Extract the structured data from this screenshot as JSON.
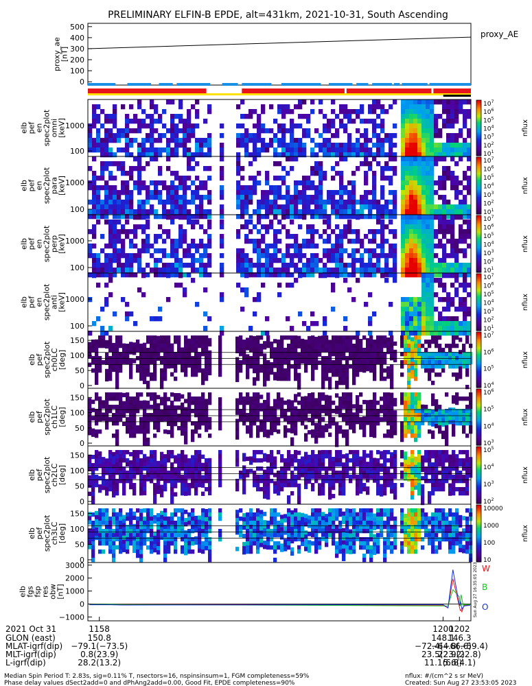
{
  "title": "PRELIMINARY ELFIN-B EPDE, alt=431km, 2021-10-31, South Ascending",
  "colors": {
    "bar_blue": "#1a8fe6",
    "bar_red": "#e8151b",
    "bar_yellow": "#ffe100",
    "bar_black": "#000000",
    "mag_east": "#e8151b",
    "mag_north": "#13c61f",
    "mag_outward": "#1530d8"
  },
  "chart_data": [
    {
      "id": "proxy_ae",
      "type": "line",
      "ylabel_lines": [
        "proxy_ae",
        "[nT]"
      ],
      "legend": "proxy_AE",
      "yticks": [
        0,
        100,
        200,
        300,
        400,
        500
      ],
      "ylim": [
        -30,
        530
      ],
      "xlim_min": [
        1156.6,
        1203.4
      ],
      "series": [
        {
          "name": "proxy_AE",
          "x_min": [
            1156.6,
            1203.4
          ],
          "values": [
            300,
            405
          ]
        }
      ]
    },
    {
      "id": "status_bars",
      "type": "bar",
      "rows": [
        {
          "color": "bar_blue",
          "segments": [
            [
              1156.6,
              1157.3
            ],
            [
              1157.6,
              1158.2
            ],
            [
              1158.4,
              1158.75
            ],
            [
              1158.85,
              1159.7
            ],
            [
              1160.0,
              1160.4
            ],
            [
              1160.5,
              1161.25
            ],
            [
              1161.5,
              1162.5
            ],
            [
              1162.7,
              1163.3
            ],
            [
              1163.4,
              1163.7
            ],
            [
              1163.8,
              1164.3
            ],
            [
              1164.35,
              1164.5
            ],
            [
              1164.55,
              1165.2
            ],
            [
              1165.25,
              1166.3
            ]
          ]
        },
        {
          "color": "bar_red",
          "segments": [
            [
              1156.6,
              1159.6
            ],
            [
              1160.5,
              1163.1
            ],
            [
              1163.15,
              1165.3
            ],
            [
              1165.35,
              1166.3
            ]
          ]
        },
        {
          "color": "bar_yellow",
          "segments": [
            [
              1156.6,
              1166.3
            ]
          ]
        },
        {
          "color": "bar_black",
          "segments": [
            [
              1165.6,
              1166.3
            ]
          ]
        }
      ]
    },
    {
      "id": "energy_spectrograms",
      "type": "heatmap",
      "panels": [
        {
          "ylabel_lines": [
            "elb",
            "pef",
            "en",
            "spec2plot",
            "omni",
            "[keV]"
          ],
          "yticks": [
            "1000",
            "100"
          ],
          "zticks": [
            "10^7",
            "10^6",
            "10^5",
            "10^4",
            "10^3",
            "10^2",
            "10^1"
          ],
          "zlabel": "nflux"
        },
        {
          "ylabel_lines": [
            "elb",
            "pef",
            "en",
            "spec2plot",
            "para",
            "[keV]"
          ],
          "yticks": [
            "1000",
            "100"
          ],
          "zticks": [
            "10^7",
            "10^6",
            "10^5",
            "10^4",
            "10^3",
            "10^2",
            "10^1"
          ],
          "zlabel": "nflux"
        },
        {
          "ylabel_lines": [
            "elb",
            "pef",
            "en",
            "spec2plot",
            "perp",
            "[keV]"
          ],
          "yticks": [
            "1000",
            "100"
          ],
          "zticks": [
            "10^7",
            "10^6",
            "10^5",
            "10^4",
            "10^3",
            "10^2",
            "10^1"
          ],
          "zlabel": "nflux"
        },
        {
          "ylabel_lines": [
            "elb",
            "pef",
            "en",
            "spec2plot",
            "anti",
            "[keV]"
          ],
          "yticks": [
            "1000",
            "100"
          ],
          "zticks": [
            "10^7",
            "10^6",
            "10^5",
            "10^4",
            "10^3",
            "10^2",
            "10^1"
          ],
          "zlabel": "nflux"
        }
      ]
    },
    {
      "id": "pitch_angle_spectrograms",
      "type": "heatmap",
      "panels": [
        {
          "ylabel_lines": [
            "elb",
            "pef",
            "spec2plot",
            "ch0LC",
            "[deg]"
          ],
          "yticks": [
            "150",
            "100",
            "50",
            "0"
          ],
          "zticks": [
            "10^7",
            "10^6",
            "10^5",
            "10^4"
          ],
          "zlabel": "nflux"
        },
        {
          "ylabel_lines": [
            "elb",
            "pef",
            "spec2plot",
            "ch1LC",
            "[deg]"
          ],
          "yticks": [
            "150",
            "100",
            "50",
            "0"
          ],
          "zticks": [
            "10^6",
            "10^5",
            "10^4",
            "10^3"
          ],
          "zlabel": "nflux"
        },
        {
          "ylabel_lines": [
            "elb",
            "pef",
            "spec2plot",
            "ch2LC",
            "[deg]"
          ],
          "yticks": [
            "150",
            "100",
            "50",
            "0"
          ],
          "zticks": [
            "10^5",
            "10^4",
            "10^3",
            "10^2"
          ],
          "zlabel": "nflux"
        },
        {
          "ylabel_lines": [
            "elb",
            "pef",
            "spec2plot",
            "ch3LC",
            "[deg]"
          ],
          "yticks": [
            "150",
            "100",
            "50",
            "0"
          ],
          "zticks": [
            "10000",
            "1000",
            "100",
            "10"
          ],
          "zlabel": "nflux"
        }
      ]
    },
    {
      "id": "mag_residuals",
      "type": "line",
      "ylabel_lines": [
        "elb",
        "fgs",
        "fsp",
        "res",
        "obw",
        "[nT]"
      ],
      "yticks": [
        3000,
        2000,
        1000,
        0,
        -1000
      ],
      "ylim": [
        -1300,
        3200
      ],
      "xlim_min": [
        1156.6,
        1203.4
      ],
      "side_labels": [
        "W",
        "B",
        "O"
      ],
      "vertical_note": "Sun Aug 27 16:35:05 2023",
      "series": [
        {
          "name": "W",
          "color": "mag_east",
          "x_min": [
            1156.8,
            1159.5,
            1160.8,
            1200.0,
            1200.6,
            1201.2,
            1202.1,
            1202.2,
            1202.3,
            1202.45,
            1202.6,
            1203.3
          ],
          "values": [
            -40,
            -20,
            -20,
            -100,
            -300,
            1950,
            -500,
            -450,
            -600,
            -300,
            -100,
            -60
          ]
        },
        {
          "name": "B",
          "color": "mag_north",
          "x_min": [
            1156.8,
            1159.5,
            1160.8,
            1200.0,
            1200.6,
            1201.2,
            1202.0,
            1202.1,
            1202.2,
            1202.3,
            1202.45,
            1202.6,
            1203.3
          ],
          "values": [
            -40,
            -20,
            -40,
            -150,
            -150,
            1100,
            550,
            -150,
            720,
            450,
            -120,
            -40,
            -50
          ]
        },
        {
          "name": "O",
          "color": "mag_outward",
          "x_min": [
            1156.8,
            1159.5,
            1160.8,
            1200.0,
            1200.6,
            1201.2,
            1202.0,
            1202.15,
            1202.3,
            1202.45,
            1202.6,
            1203.3
          ],
          "values": [
            -60,
            -60,
            -80,
            -50,
            -300,
            2650,
            -100,
            150,
            -400,
            -250,
            -150,
            -100
          ]
        }
      ]
    }
  ],
  "xaxis": {
    "rows": [
      "2021 Oct 31",
      "GLON (east)",
      "MLAT-igrf(dip)",
      "MLT-igrf(dip)",
      "L-igrf(dip)"
    ],
    "ticks": [
      {
        "x_min": 1158,
        "values": [
          "1158",
          "150.8",
          "−79.1(−73.5)",
          "0.8(23.9)",
          "28.2(13.2)"
        ]
      },
      {
        "x_min": 1200,
        "values": [
          "1200",
          "148.1",
          "−72.4(−66.6)",
          "23.5(23.2)",
          "11.1(6.8)"
        ]
      },
      {
        "x_min": 1202,
        "values": [
          "1202",
          "146.3",
          "−64.8(−59.4)",
          "22.9(22.8)",
          "5.6(4.1)"
        ]
      }
    ]
  },
  "footer": {
    "left_line1": "Median Spin Period T: 2.83s, sig=0.11% T, nsectors=16, nspinsinsum=1, FGM completeness=59%",
    "left_line2": "Phase delay values dSect2add=0 and dPhAng2add=0.00, Good Fit, EPDE completeness=90%",
    "right_line1": "nflux: #/(cm^2 s sr MeV)",
    "right_line2": "Created: Sun Aug 27 23:53:05 2023"
  }
}
